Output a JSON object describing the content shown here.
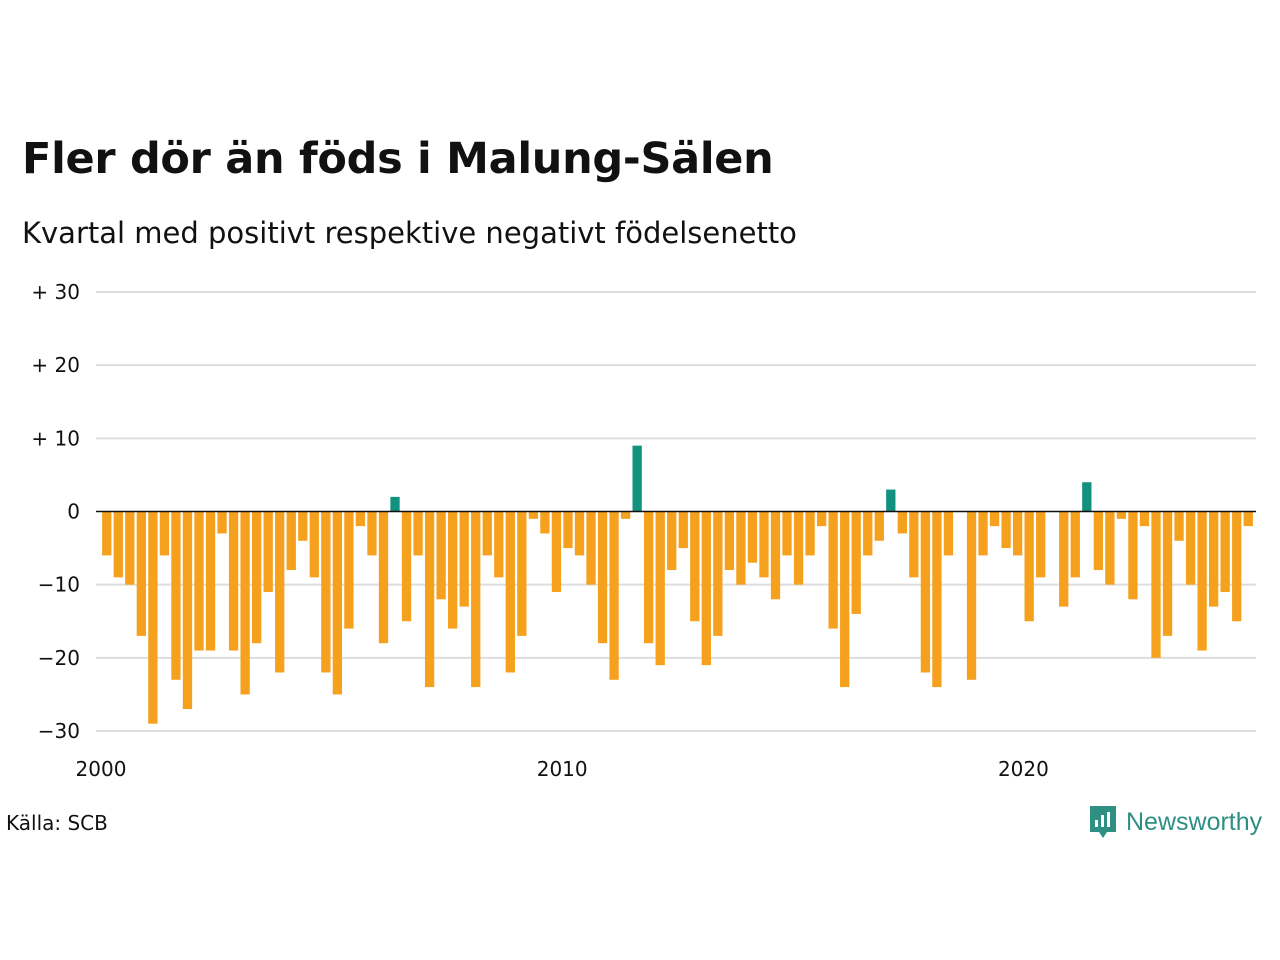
{
  "title": "Fler dör än föds i Malung-Sälen",
  "subtitle": "Kvartal med positivt respektive negativt födelsenetto",
  "source": "Källa: SCB",
  "brand": {
    "name": "Newsworthy",
    "icon": "newsworthy-logo-icon"
  },
  "colors": {
    "positive": "#13917f",
    "negative": "#f6a11d",
    "grid": "#dddddd",
    "zero": "#111111"
  },
  "chart_data": {
    "type": "bar",
    "title": "Fler dör än föds i Malung-Sälen",
    "subtitle": "Kvartal med positivt respektive negativt födelsenetto",
    "xlabel": "",
    "ylabel": "",
    "ylim": [
      -30,
      30
    ],
    "yticks": [
      30,
      20,
      10,
      0,
      -10,
      -20,
      -30
    ],
    "ytick_labels": [
      "+ 30",
      "+ 20",
      "+ 10",
      "0",
      "−10",
      "−20",
      "−30"
    ],
    "xticks": [
      2000,
      2010,
      2020
    ],
    "xtick_labels": [
      "2000",
      "2010",
      "2020"
    ],
    "x_start": 2000,
    "periods_per_year": 4,
    "grid": true,
    "legend": "none",
    "series": [
      {
        "values": [
          -6,
          -9,
          -10,
          -17,
          -29,
          -6,
          -23,
          -27,
          -19,
          -19,
          -3,
          -19,
          -25,
          -18,
          -11,
          -22,
          -8,
          -4,
          -9,
          -22,
          -25,
          -16,
          -2,
          -6,
          -18,
          2,
          -15,
          -6,
          -24,
          -12,
          -16,
          -13,
          -24,
          -6,
          -9,
          -22,
          -17,
          -1,
          -3,
          -11,
          -5,
          -6,
          -10,
          -18,
          -23,
          -1,
          9,
          -18,
          -21,
          -8,
          -5,
          -15,
          -21,
          -17,
          -8,
          -10,
          -7,
          -9,
          -12,
          -6,
          -10,
          -6,
          -2,
          -16,
          -24,
          -14,
          -6,
          -4,
          3,
          -3,
          -9,
          -22,
          -24,
          -6,
          0,
          -23,
          -6,
          -2,
          -5,
          -6,
          -15,
          -9,
          0,
          -13,
          -9,
          4,
          -8,
          -10,
          -1,
          -12,
          -2,
          -20,
          -17,
          -4,
          -10,
          -19,
          -13,
          -11,
          -15,
          -2
        ]
      }
    ]
  }
}
